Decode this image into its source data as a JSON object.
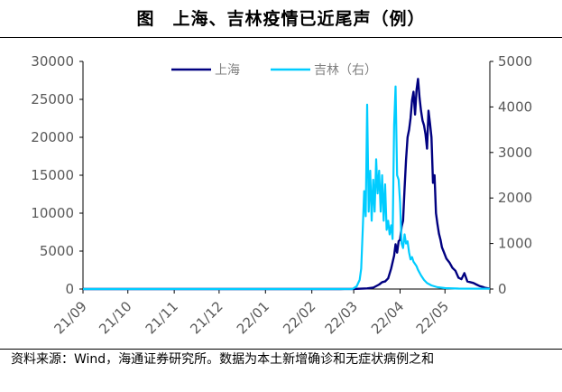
{
  "title": "图　上海、吉林疫情已近尾声（例）",
  "source": "资料来源：Wind，海通证券研究所。数据为本土新增确诊和无症状病例之和",
  "chart_data": {
    "type": "line",
    "x_ticks": [
      "21/09",
      "21/10",
      "21/11",
      "21/12",
      "22/01",
      "22/02",
      "22/03",
      "22/04",
      "22/05"
    ],
    "x_start": "2021-09-01",
    "x_end": "2022-05-31",
    "y_left": {
      "min": 0,
      "max": 30000,
      "ticks": [
        0,
        5000,
        10000,
        15000,
        20000,
        25000,
        30000
      ]
    },
    "y_right": {
      "min": 0,
      "max": 5000,
      "ticks": [
        0,
        1000,
        2000,
        3000,
        4000,
        5000
      ]
    },
    "legend": {
      "position": "top-center"
    },
    "series": [
      {
        "name": "上海",
        "axis": "left",
        "color": "#000080",
        "points": [
          [
            "2021-09-01",
            0
          ],
          [
            "2022-02-20",
            0
          ],
          [
            "2022-03-01",
            10
          ],
          [
            "2022-03-10",
            80
          ],
          [
            "2022-03-14",
            180
          ],
          [
            "2022-03-18",
            600
          ],
          [
            "2022-03-20",
            900
          ],
          [
            "2022-03-22",
            1000
          ],
          [
            "2022-03-24",
            1400
          ],
          [
            "2022-03-26",
            2700
          ],
          [
            "2022-03-28",
            4400
          ],
          [
            "2022-03-29",
            5900
          ],
          [
            "2022-03-30",
            4800
          ],
          [
            "2022-03-31",
            6300
          ],
          [
            "2022-04-01",
            6500
          ],
          [
            "2022-04-02",
            8200
          ],
          [
            "2022-04-03",
            9000
          ],
          [
            "2022-04-04",
            13300
          ],
          [
            "2022-04-05",
            17000
          ],
          [
            "2022-04-06",
            20000
          ],
          [
            "2022-04-07",
            21000
          ],
          [
            "2022-04-08",
            22500
          ],
          [
            "2022-04-09",
            24900
          ],
          [
            "2022-04-10",
            26000
          ],
          [
            "2022-04-11",
            23000
          ],
          [
            "2022-04-12",
            26300
          ],
          [
            "2022-04-13",
            27700
          ],
          [
            "2022-04-14",
            25200
          ],
          [
            "2022-04-15",
            23500
          ],
          [
            "2022-04-16",
            22200
          ],
          [
            "2022-04-17",
            21600
          ],
          [
            "2022-04-18",
            20400
          ],
          [
            "2022-04-19",
            18500
          ],
          [
            "2022-04-20",
            23500
          ],
          [
            "2022-04-21",
            21800
          ],
          [
            "2022-04-22",
            20000
          ],
          [
            "2022-04-23",
            14000
          ],
          [
            "2022-04-24",
            15000
          ],
          [
            "2022-04-25",
            10000
          ],
          [
            "2022-04-26",
            8500
          ],
          [
            "2022-04-27",
            7300
          ],
          [
            "2022-04-28",
            6500
          ],
          [
            "2022-04-29",
            5500
          ],
          [
            "2022-04-30",
            5000
          ],
          [
            "2022-05-02",
            4000
          ],
          [
            "2022-05-04",
            3500
          ],
          [
            "2022-05-06",
            2800
          ],
          [
            "2022-05-08",
            2400
          ],
          [
            "2022-05-10",
            1500
          ],
          [
            "2022-05-12",
            1300
          ],
          [
            "2022-05-14",
            2100
          ],
          [
            "2022-05-16",
            1000
          ],
          [
            "2022-05-18",
            900
          ],
          [
            "2022-05-20",
            800
          ],
          [
            "2022-05-22",
            600
          ],
          [
            "2022-05-24",
            400
          ],
          [
            "2022-05-26",
            300
          ],
          [
            "2022-05-28",
            150
          ],
          [
            "2022-05-31",
            50
          ]
        ]
      },
      {
        "name": "吉林（右）",
        "axis": "right",
        "color": "#00CCFF",
        "points": [
          [
            "2021-09-01",
            0
          ],
          [
            "2022-02-28",
            0
          ],
          [
            "2022-03-01",
            20
          ],
          [
            "2022-03-03",
            60
          ],
          [
            "2022-03-05",
            200
          ],
          [
            "2022-03-06",
            450
          ],
          [
            "2022-03-07",
            1300
          ],
          [
            "2022-03-08",
            2150
          ],
          [
            "2022-03-09",
            1600
          ],
          [
            "2022-03-10",
            4050
          ],
          [
            "2022-03-11",
            1700
          ],
          [
            "2022-03-12",
            2600
          ],
          [
            "2022-03-13",
            1500
          ],
          [
            "2022-03-14",
            2400
          ],
          [
            "2022-03-15",
            1700
          ],
          [
            "2022-03-16",
            2850
          ],
          [
            "2022-03-17",
            2100
          ],
          [
            "2022-03-18",
            2600
          ],
          [
            "2022-03-19",
            1700
          ],
          [
            "2022-03-20",
            2500
          ],
          [
            "2022-03-21",
            1500
          ],
          [
            "2022-03-22",
            2300
          ],
          [
            "2022-03-23",
            1300
          ],
          [
            "2022-03-24",
            1500
          ],
          [
            "2022-03-25",
            1200
          ],
          [
            "2022-03-26",
            1400
          ],
          [
            "2022-03-27",
            1100
          ],
          [
            "2022-03-28",
            3600
          ],
          [
            "2022-03-29",
            4450
          ],
          [
            "2022-03-30",
            2500
          ],
          [
            "2022-03-31",
            2400
          ],
          [
            "2022-04-01",
            1900
          ],
          [
            "2022-04-02",
            1000
          ],
          [
            "2022-04-03",
            900
          ],
          [
            "2022-04-04",
            1200
          ],
          [
            "2022-04-05",
            1000
          ],
          [
            "2022-04-06",
            1050
          ],
          [
            "2022-04-07",
            800
          ],
          [
            "2022-04-08",
            650
          ],
          [
            "2022-04-09",
            700
          ],
          [
            "2022-04-10",
            600
          ],
          [
            "2022-04-11",
            550
          ],
          [
            "2022-04-12",
            500
          ],
          [
            "2022-04-13",
            420
          ],
          [
            "2022-04-15",
            300
          ],
          [
            "2022-04-17",
            200
          ],
          [
            "2022-04-19",
            130
          ],
          [
            "2022-04-22",
            80
          ],
          [
            "2022-04-26",
            40
          ],
          [
            "2022-05-01",
            20
          ],
          [
            "2022-05-10",
            10
          ],
          [
            "2022-05-31",
            5
          ]
        ]
      }
    ]
  }
}
